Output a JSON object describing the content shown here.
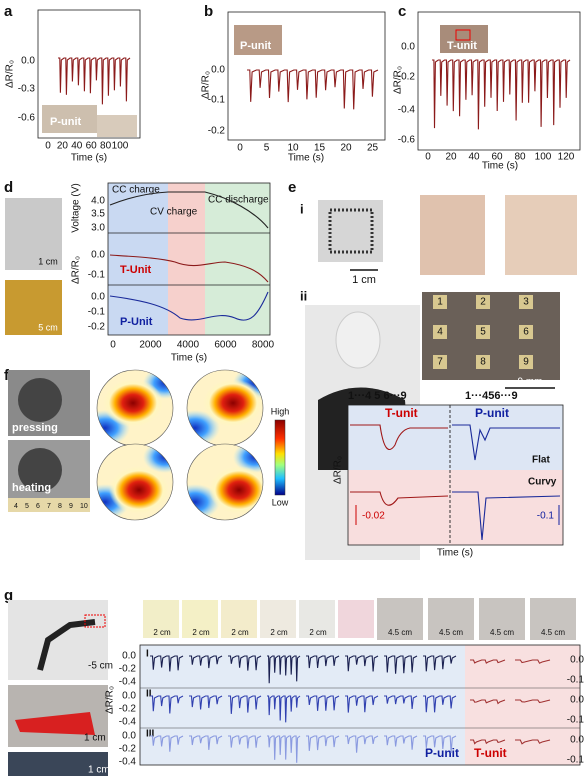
{
  "panels": {
    "a": {
      "label": "a",
      "y_label": "ΔR/R₀",
      "x_label": "Time (s)",
      "yticks": [
        "0.0",
        "-0.3",
        "-0.6"
      ],
      "xticks": [
        "0",
        "20",
        "40",
        "60",
        "80",
        "100"
      ],
      "inset": "P-unit"
    },
    "b": {
      "label": "b",
      "y_label": "ΔR/R₀",
      "x_label": "Time (s)",
      "yticks": [
        "0.0",
        "-0.1",
        "-0.2"
      ],
      "xticks": [
        "0",
        "5",
        "10",
        "15",
        "20",
        "25"
      ],
      "inset": "P-unit"
    },
    "c": {
      "label": "c",
      "y_label": "ΔR/R₀",
      "x_label": "Time (s)",
      "yticks": [
        "0.0",
        "-0.2",
        "-0.4",
        "-0.6"
      ],
      "xticks": [
        "0",
        "20",
        "40",
        "60",
        "80",
        "100",
        "120"
      ],
      "inset": "T-unit"
    },
    "d": {
      "label": "d",
      "scale_1": "1 cm",
      "scale_2": "5 cm",
      "phases": [
        "CC charge",
        "CV charge",
        "CC discharge"
      ],
      "voltage_label": "Voltage (V)",
      "voltage_ticks": [
        "4.0",
        "3.5",
        "3.0"
      ],
      "y_label": "ΔR/R₀",
      "t_unit": "T-Unit",
      "t_ticks": [
        "0.0",
        "-0.1"
      ],
      "p_unit": "P-Unit",
      "p_ticks": [
        "0.0",
        "-0.1",
        "-0.2"
      ],
      "xticks": [
        "0",
        "2000",
        "4000",
        "6000",
        "8000"
      ],
      "x_label": "Time (s)"
    },
    "e": {
      "label": "e",
      "sub_i": "i",
      "scale_i": "1 cm",
      "sub_ii": "ii",
      "grid_numbers": [
        "1",
        "2",
        "3",
        "4",
        "5",
        "6",
        "7",
        "8",
        "9"
      ],
      "scale_ii": "9 mm",
      "t_group": "1···4   5   6···9",
      "p_group": "1···456···9",
      "t_unit": "T-unit",
      "p_unit": "P-unit",
      "flat": "Flat",
      "curvy": "Curvy",
      "t_scale": "-0.02",
      "p_scale": "-0.1",
      "y_label": "ΔR/R₀",
      "x_label": "Time (s)"
    },
    "f": {
      "label": "f",
      "pressing": "pressing",
      "heating": "heating",
      "high": "High",
      "low": "Low",
      "ruler": [
        "4",
        "5",
        "6",
        "7",
        "8",
        "9",
        "10"
      ]
    },
    "g": {
      "label": "g",
      "sub_i": "i",
      "scale_robot": "-5 cm",
      "scale_hand": "1 cm",
      "scale_sensor": "1 cm",
      "sub_ii": "ii",
      "object_scales": [
        "2 cm",
        "2 cm",
        "2 cm",
        "2 cm",
        "2 cm"
      ],
      "robot_scales": [
        "4.5 cm",
        "4.5 cm",
        "4.5 cm",
        "4.5 cm"
      ],
      "rows": [
        "I",
        "II",
        "III"
      ],
      "yticks": [
        "0.0",
        "-0.2",
        "-0.4"
      ],
      "y2ticks": [
        "0.0",
        "-0.1"
      ],
      "y_label": "ΔR/R₀",
      "p_unit": "P-unit",
      "t_unit": "T-unit"
    }
  }
}
